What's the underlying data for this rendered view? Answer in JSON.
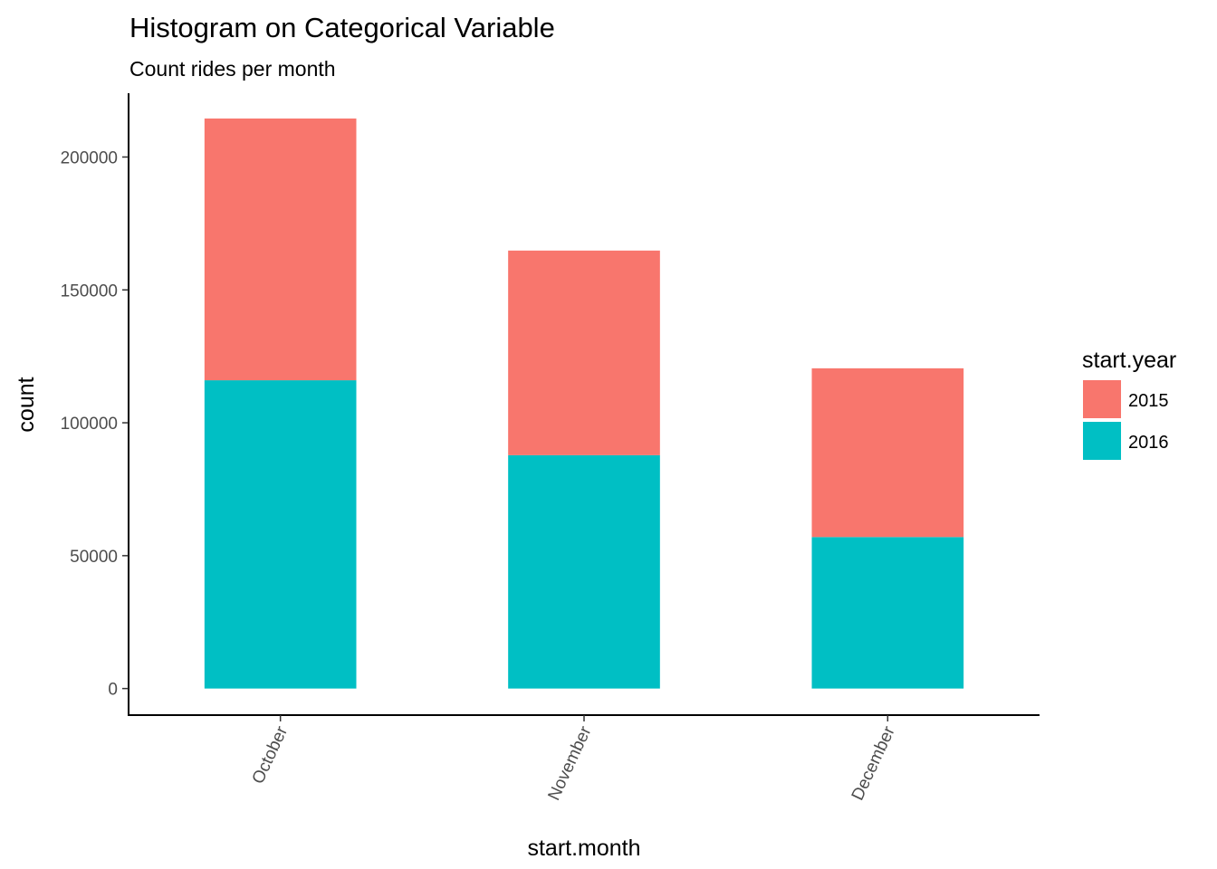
{
  "chart_data": {
    "type": "bar",
    "stacked": true,
    "title": "Histogram on Categorical Variable",
    "subtitle": "Count rides per month",
    "xlabel": "start.month",
    "ylabel": "count",
    "categories": [
      "October",
      "November",
      "December"
    ],
    "series": [
      {
        "name": "2015",
        "values": [
          98500,
          77000,
          63500
        ],
        "color": "#F8766D"
      },
      {
        "name": "2016",
        "values": [
          116000,
          87800,
          57000
        ],
        "color": "#00BFC4"
      }
    ],
    "ylim": [
      -10000,
      224000
    ],
    "yticks": [
      0,
      50000,
      100000,
      150000,
      200000
    ],
    "ytick_labels": [
      "0",
      "50000",
      "100000",
      "150000",
      "200000"
    ],
    "legend": {
      "title": "start.year",
      "position": "right"
    },
    "grid": false
  }
}
